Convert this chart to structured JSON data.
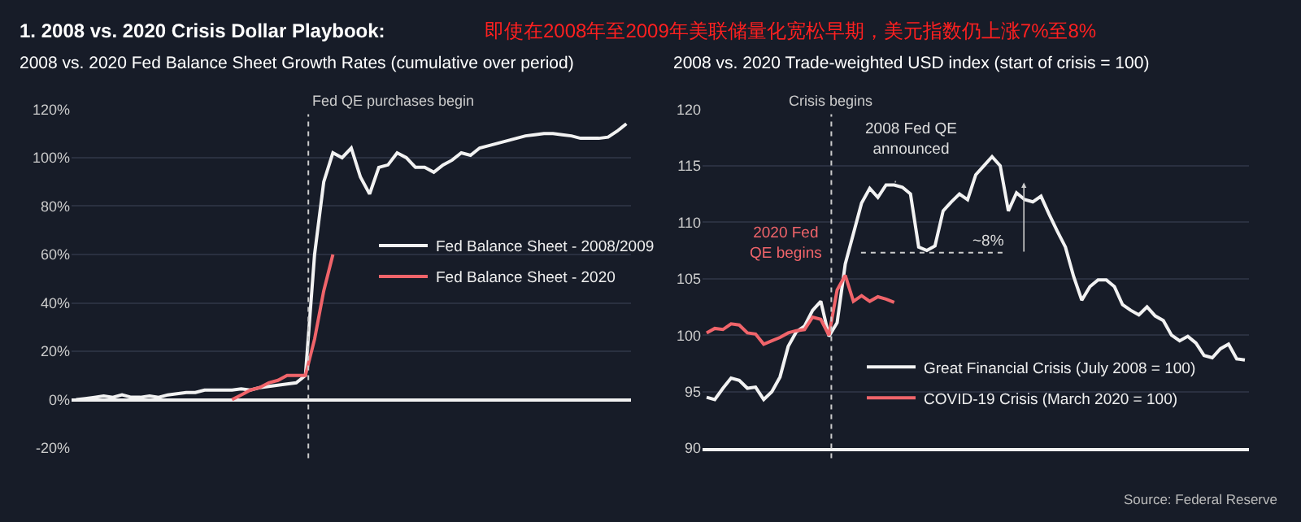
{
  "chart_data": [
    {
      "type": "line",
      "title": "2008 vs. 2020 Fed Balance Sheet Growth Rates (cumulative over period)",
      "categories": [
        null,
        null,
        null,
        null,
        null,
        null,
        null,
        null,
        null,
        null,
        null,
        null,
        null,
        null,
        null,
        null,
        null,
        null,
        null,
        null,
        null,
        null,
        null,
        null,
        null,
        null,
        null,
        null,
        null,
        null,
        null,
        null,
        null,
        null,
        null,
        null,
        null,
        null,
        null,
        null,
        null,
        null,
        null,
        null,
        null,
        null,
        null,
        null,
        null,
        null,
        null,
        null,
        null,
        null,
        null,
        null,
        null,
        null,
        null,
        null,
        null
      ],
      "series": [
        {
          "name": "Fed Balance Sheet - 2008/2009",
          "color": "#f2f2f2",
          "values": [
            0,
            0.5,
            1,
            1.5,
            1,
            2,
            1,
            1,
            1.5,
            1,
            2,
            2.5,
            3,
            3,
            4,
            4,
            4,
            4,
            4.5,
            4,
            5,
            5.5,
            6,
            6.5,
            7,
            10,
            60,
            90,
            102,
            100,
            104,
            92,
            85,
            96,
            97,
            102,
            100,
            96,
            96,
            94,
            97,
            99,
            102,
            101,
            104,
            105,
            106,
            107,
            108,
            109,
            109.5,
            110,
            110,
            109.5,
            109,
            108,
            108,
            108,
            108.5,
            111,
            114
          ]
        },
        {
          "name": "Fed Balance Sheet - 2020",
          "color": "#f0646a",
          "values": [
            null,
            null,
            null,
            null,
            null,
            null,
            null,
            null,
            null,
            null,
            null,
            null,
            null,
            null,
            null,
            null,
            null,
            0,
            2,
            4,
            5,
            7,
            8,
            10,
            10,
            10,
            25,
            45,
            60,
            null,
            null,
            null,
            null,
            null,
            null,
            null,
            null,
            null,
            null,
            null,
            null,
            null,
            null,
            null,
            null,
            null,
            null,
            null,
            null,
            null,
            null,
            null,
            null,
            null,
            null,
            null,
            null,
            null,
            null,
            null,
            null
          ]
        }
      ],
      "ylim": [
        -20,
        120
      ],
      "yticks": [
        {
          "value": -20,
          "label": "-20%"
        },
        {
          "value": 0,
          "label": "0%"
        },
        {
          "value": 20,
          "label": "20%"
        },
        {
          "value": 40,
          "label": "40%"
        },
        {
          "value": 60,
          "label": "60%"
        },
        {
          "value": 80,
          "label": "80%"
        },
        {
          "value": 100,
          "label": "100%"
        },
        {
          "value": 120,
          "label": "120%"
        }
      ],
      "annotations": [
        "Fed QE purchases begin",
        "1. 2008 vs. 2020 Crisis Dollar Playbook:",
        "即使在2008年至2009年美联储量化宽松早期，美元指数仍上涨7%至8%"
      ],
      "grid": "y",
      "legend": "right",
      "tick_labels": "y"
    },
    {
      "type": "line",
      "title": "2008 vs. 2020 Trade-weighted USD index (start of crisis = 100)",
      "categories": [
        null,
        null,
        null,
        null,
        null,
        null,
        null,
        null,
        null,
        null,
        null,
        null,
        null,
        null,
        null,
        null,
        null,
        null,
        null,
        null,
        null,
        null,
        null,
        null,
        null,
        null,
        null,
        null,
        null,
        null,
        null,
        null,
        null,
        null,
        null,
        null,
        null,
        null,
        null,
        null,
        null,
        null,
        null,
        null,
        null,
        null,
        null,
        null,
        null,
        null,
        null,
        null,
        null,
        null,
        null,
        null,
        null,
        null,
        null,
        null,
        null,
        null,
        null,
        null,
        null,
        null,
        null
      ],
      "series": [
        {
          "name": "Great Financial Crisis (July 2008 = 100)",
          "color": "#f2f2f2",
          "values": [
            94.5,
            94.3,
            95.3,
            96.2,
            96.0,
            95.3,
            95.4,
            94.3,
            95.0,
            96.3,
            99.0,
            100.3,
            100.8,
            102.2,
            103.0,
            99.9,
            101.1,
            106.3,
            109.0,
            111.7,
            113.0,
            112.2,
            113.3,
            113.3,
            113.1,
            112.5,
            107.8,
            107.5,
            107.9,
            111.0,
            111.8,
            112.5,
            112.0,
            114.2,
            115.0,
            115.8,
            115.0,
            111.0,
            112.6,
            112.0,
            111.8,
            112.3,
            110.7,
            109.2,
            107.8,
            105.2,
            103.1,
            104.3,
            104.9,
            104.9,
            104.3,
            102.7,
            102.2,
            101.8,
            102.5,
            101.7,
            101.3,
            100.0,
            99.5,
            99.9,
            99.3,
            98.2,
            98.0,
            98.8,
            99.2,
            97.9,
            97.8
          ]
        },
        {
          "name": "COVID-19 Crisis (March 2020 = 100)",
          "color": "#f0646a",
          "values": [
            100.2,
            100.6,
            100.5,
            101.0,
            100.9,
            100.2,
            100.1,
            99.2,
            99.5,
            99.8,
            100.2,
            100.4,
            100.5,
            101.6,
            101.4,
            100.0,
            104.0,
            105.3,
            103.0,
            103.5,
            103.0,
            103.4,
            103.2,
            102.9,
            null,
            null,
            null,
            null,
            null,
            null,
            null,
            null,
            null,
            null,
            null,
            null,
            null,
            null,
            null,
            null,
            null,
            null,
            null,
            null,
            null,
            null,
            null,
            null,
            null,
            null,
            null,
            null,
            null,
            null,
            null,
            null,
            null,
            null,
            null,
            null,
            null,
            null,
            null,
            null,
            null,
            null,
            null
          ]
        }
      ],
      "ylim": [
        90,
        120
      ],
      "yticks": [
        90,
        95,
        100,
        105,
        110,
        115,
        120
      ],
      "ref_lines": [
        {
          "axis": "y",
          "value": 107.3,
          "color": "#cccccc",
          "line_style": "dotted"
        }
      ],
      "annotations": [
        "Crisis begins",
        "2008 Fed QE\nannounced",
        "2020 Fed\nQE begins",
        "~8%",
        "Source: Federal Reserve"
      ],
      "grid": "y",
      "legend": "bottom",
      "tick_labels": "y"
    }
  ]
}
